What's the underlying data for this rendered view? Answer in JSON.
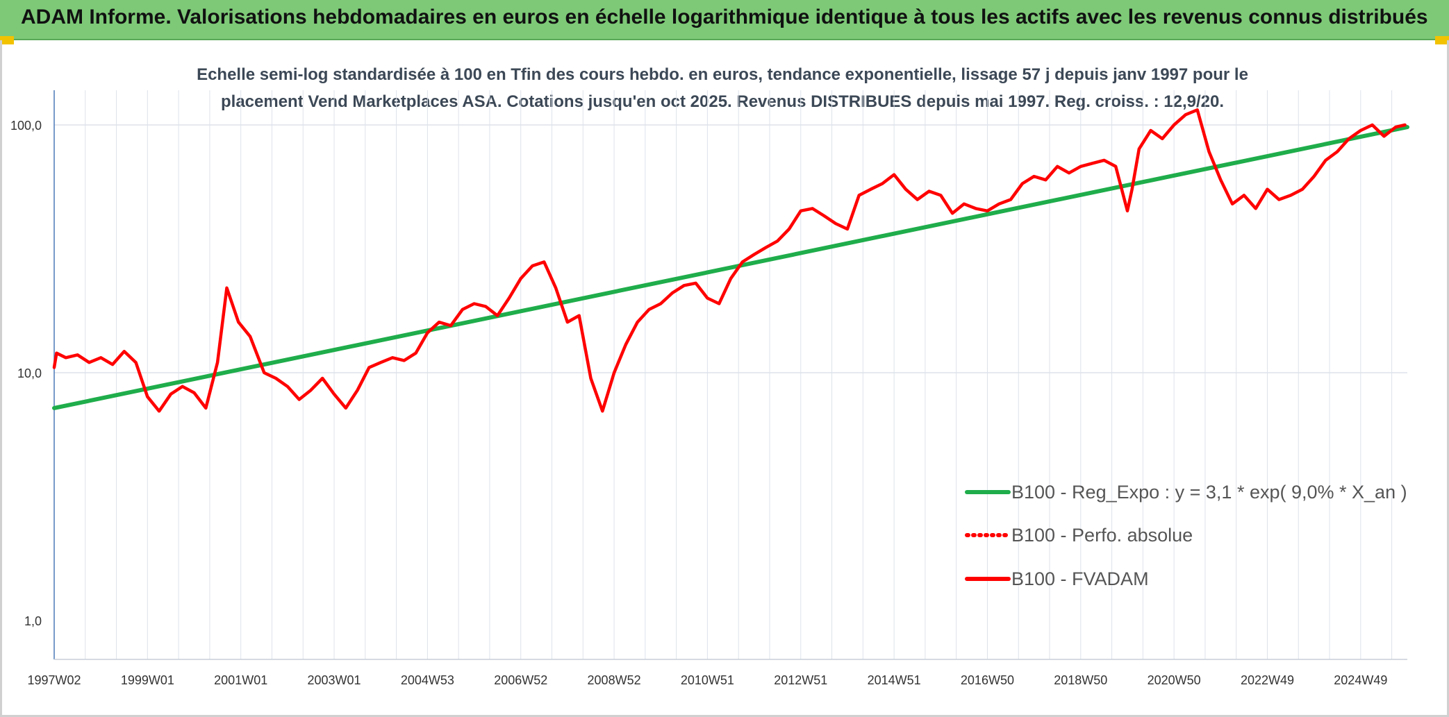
{
  "header": {
    "title": "ADAM Informe. Valorisations hebdomadaires en euros en échelle logarithmique identique à tous les actifs avec les revenus connus distribués"
  },
  "chart_data": {
    "type": "line",
    "title": "",
    "subtitle_line1": "Echelle semi-log standardisée à 100 en Tfin des cours hebdo. en euros, tendance exponentielle, lissage 57 j depuis janv 1997 pour le",
    "subtitle_line2": "placement Vend Marketplaces ASA. Cotations jusqu'en oct 2025. Revenus DISTRIBUES depuis mai 1997. Reg. croiss. : 12,9/20.",
    "xlabel": "",
    "ylabel": "",
    "y_scale": "log",
    "ylim": [
      1,
      200
    ],
    "xlim": [
      1997.0,
      2026.0
    ],
    "grid": true,
    "legend_position": "bottom-right",
    "y_ticks": [
      {
        "value": 1,
        "label": "1,0"
      },
      {
        "value": 10,
        "label": "10,0"
      },
      {
        "value": 100,
        "label": "100,0"
      }
    ],
    "x_ticks": [
      {
        "value": 1997.0,
        "label": "1997W02"
      },
      {
        "value": 1999.0,
        "label": "1999W01"
      },
      {
        "value": 2001.0,
        "label": "2001W01"
      },
      {
        "value": 2003.0,
        "label": "2003W01"
      },
      {
        "value": 2005.0,
        "label": "2004W53"
      },
      {
        "value": 2007.0,
        "label": "2006W52"
      },
      {
        "value": 2009.0,
        "label": "2008W52"
      },
      {
        "value": 2011.0,
        "label": "2010W51"
      },
      {
        "value": 2013.0,
        "label": "2012W51"
      },
      {
        "value": 2015.0,
        "label": "2014W51"
      },
      {
        "value": 2017.0,
        "label": "2016W50"
      },
      {
        "value": 2019.0,
        "label": "2018W50"
      },
      {
        "value": 2021.0,
        "label": "2020W50"
      },
      {
        "value": 2023.0,
        "label": "2022W49"
      },
      {
        "value": 2025.0,
        "label": "2024W49"
      }
    ],
    "series": [
      {
        "name": "B100 - Reg_Expo : y = 3,1 * exp( 9,0% *  X_an )",
        "color": "#1fad4b",
        "style": "solid",
        "x": [
          1997.0,
          2026.0
        ],
        "y": [
          7.2,
          98
        ]
      },
      {
        "name": "B100 - Perfo. absolue",
        "color": "#ff0000",
        "style": "dotted",
        "x": [],
        "y": []
      },
      {
        "name": "B100 - FVADAM",
        "color": "#ff0000",
        "style": "solid",
        "x": [
          1997.0,
          1997.05,
          1997.25,
          1997.5,
          1997.75,
          1998.0,
          1998.25,
          1998.5,
          1998.75,
          1999.0,
          1999.25,
          1999.5,
          1999.75,
          2000.0,
          2000.25,
          2000.5,
          2000.7,
          2000.95,
          2001.2,
          2001.5,
          2001.75,
          2002.0,
          2002.25,
          2002.5,
          2002.75,
          2003.0,
          2003.25,
          2003.5,
          2003.75,
          2004.0,
          2004.25,
          2004.5,
          2004.75,
          2005.0,
          2005.25,
          2005.5,
          2005.75,
          2006.0,
          2006.25,
          2006.5,
          2006.75,
          2007.0,
          2007.25,
          2007.5,
          2007.75,
          2008.0,
          2008.25,
          2008.5,
          2008.75,
          2009.0,
          2009.25,
          2009.5,
          2009.75,
          2010.0,
          2010.25,
          2010.5,
          2010.75,
          2011.0,
          2011.25,
          2011.5,
          2011.75,
          2012.0,
          2012.25,
          2012.5,
          2012.75,
          2013.0,
          2013.25,
          2013.5,
          2013.75,
          2014.0,
          2014.25,
          2014.5,
          2014.75,
          2015.0,
          2015.25,
          2015.5,
          2015.75,
          2016.0,
          2016.25,
          2016.5,
          2016.75,
          2017.0,
          2017.25,
          2017.5,
          2017.75,
          2018.0,
          2018.25,
          2018.5,
          2018.75,
          2019.0,
          2019.25,
          2019.5,
          2019.75,
          2020.0,
          2020.1,
          2020.25,
          2020.5,
          2020.75,
          2021.0,
          2021.25,
          2021.5,
          2021.75,
          2022.0,
          2022.25,
          2022.5,
          2022.75,
          2023.0,
          2023.25,
          2023.5,
          2023.75,
          2024.0,
          2024.25,
          2024.5,
          2024.75,
          2025.0,
          2025.25,
          2025.5,
          2025.75,
          2025.95
        ],
        "y": [
          10.5,
          12.0,
          11.5,
          11.8,
          11.0,
          11.5,
          10.8,
          12.2,
          11.0,
          8.0,
          7.0,
          8.2,
          8.8,
          8.3,
          7.2,
          11.0,
          22.0,
          16.0,
          14.0,
          10.0,
          9.5,
          8.8,
          7.8,
          8.5,
          9.5,
          8.2,
          7.2,
          8.5,
          10.5,
          11.0,
          11.5,
          11.2,
          12.0,
          14.5,
          16.0,
          15.5,
          18.0,
          19.0,
          18.5,
          17.0,
          20.0,
          24.0,
          27.0,
          28.0,
          22.0,
          16.0,
          17.0,
          9.5,
          7.0,
          10.0,
          13.0,
          16.0,
          18.0,
          19.0,
          21.0,
          22.5,
          23.0,
          20.0,
          19.0,
          24.0,
          28.0,
          30.0,
          32.0,
          34.0,
          38.0,
          45.0,
          46.0,
          43.0,
          40.0,
          38.0,
          52.0,
          55.0,
          58.0,
          63.0,
          55.0,
          50.0,
          54.0,
          52.0,
          44.0,
          48.0,
          46.0,
          45.0,
          48.0,
          50.0,
          58.0,
          62.0,
          60.0,
          68.0,
          64.0,
          68.0,
          70.0,
          72.0,
          68.0,
          45.0,
          55.0,
          80.0,
          95.0,
          88.0,
          100.0,
          110.0,
          115.0,
          78.0,
          60.0,
          48.0,
          52.0,
          46.0,
          55.0,
          50.0,
          52.0,
          55.0,
          62.0,
          72.0,
          78.0,
          88.0,
          95.0,
          100.0,
          90.0,
          98.0,
          100.0
        ]
      }
    ]
  }
}
